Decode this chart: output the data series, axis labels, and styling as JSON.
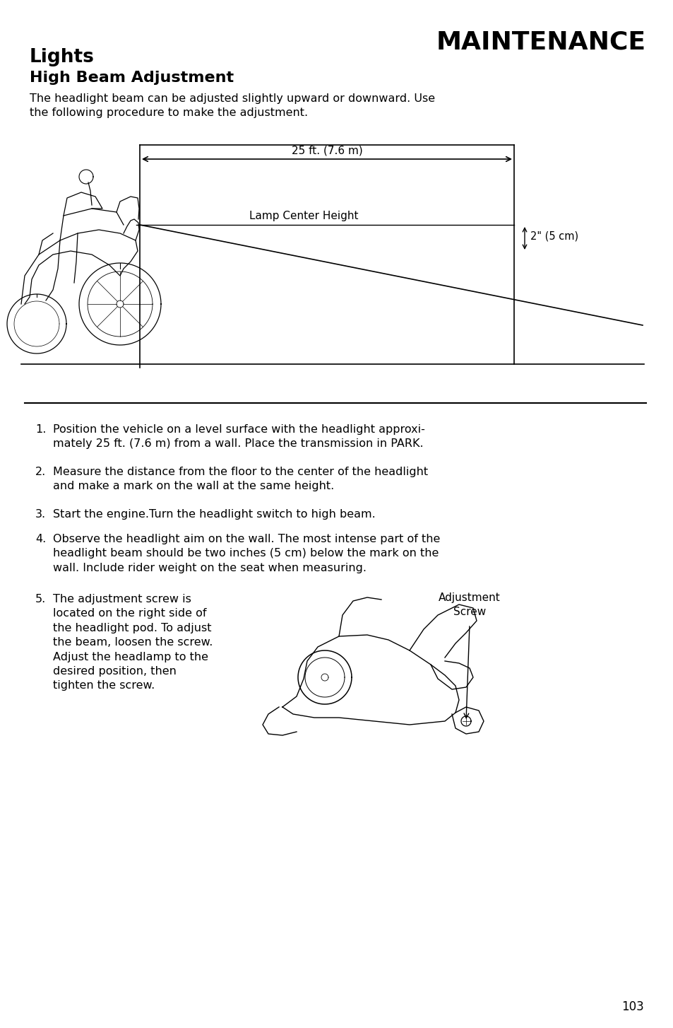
{
  "title_right": "MAINTENANCE",
  "title_left": "Lights",
  "subtitle": "High Beam Adjustment",
  "intro_line1": "The headlight beam can be adjusted slightly upward or downward. Use",
  "intro_line2": "the following procedure to make the adjustment.",
  "diagram_label_distance": "25 ft. (7.6 m)",
  "diagram_label_lamp": "Lamp Center Height",
  "diagram_label_2inch": "2\" (5 cm)",
  "steps": [
    "Position the vehicle on a level surface with the headlight approxi-\nmately 25 ft. (7.6 m) from a wall. Place the transmission in PARK.",
    "Measure the distance from the floor to the center of the headlight\nand make a mark on the wall at the same height.",
    "Start the engine.Turn the headlight switch to high beam.",
    "Observe the headlight aim on the wall. The most intense part of the\nheadlight beam should be two inches (5 cm) below the mark on the\nwall. Include rider weight on the seat when measuring.",
    "The adjustment screw is\nlocated on the right side of\nthe headlight pod. To adjust\nthe beam, loosen the screw.\nAdjust the headlamp to the\ndesired position, then\ntighten the screw."
  ],
  "step5_label_line1": "Adjustment",
  "step5_label_line2": "Screw",
  "page_number": "103",
  "bg_color": "#ffffff",
  "text_color": "#000000"
}
